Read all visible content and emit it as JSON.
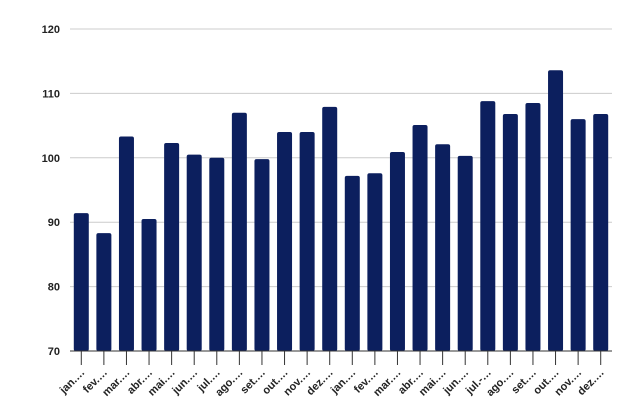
{
  "chart_data": {
    "type": "bar",
    "categories": [
      "jan.…",
      "fev.…",
      "mar.…",
      "abr.…",
      "mai.…",
      "jun.…",
      "jul.…",
      "ago.…",
      "set.…",
      "out.…",
      "nov.…",
      "dez.…",
      "jan.…",
      "fev.…",
      "mar.…",
      "abr.…",
      "mai.…",
      "jun.…",
      "jul.-…",
      "ago.…",
      "set.…",
      "out.…",
      "nov.…",
      "dez.…"
    ],
    "values": [
      91.4,
      88.3,
      103.3,
      90.5,
      102.3,
      100.5,
      100.0,
      107.0,
      99.8,
      104.0,
      104.0,
      107.9,
      97.2,
      97.6,
      100.9,
      105.1,
      102.1,
      100.3,
      108.8,
      106.8,
      108.5,
      113.6,
      106.0,
      106.8
    ],
    "color": "#0c1f5e",
    "ylim": [
      70,
      120
    ],
    "yticks": [
      70,
      80,
      90,
      100,
      110,
      120
    ],
    "grid": true
  }
}
